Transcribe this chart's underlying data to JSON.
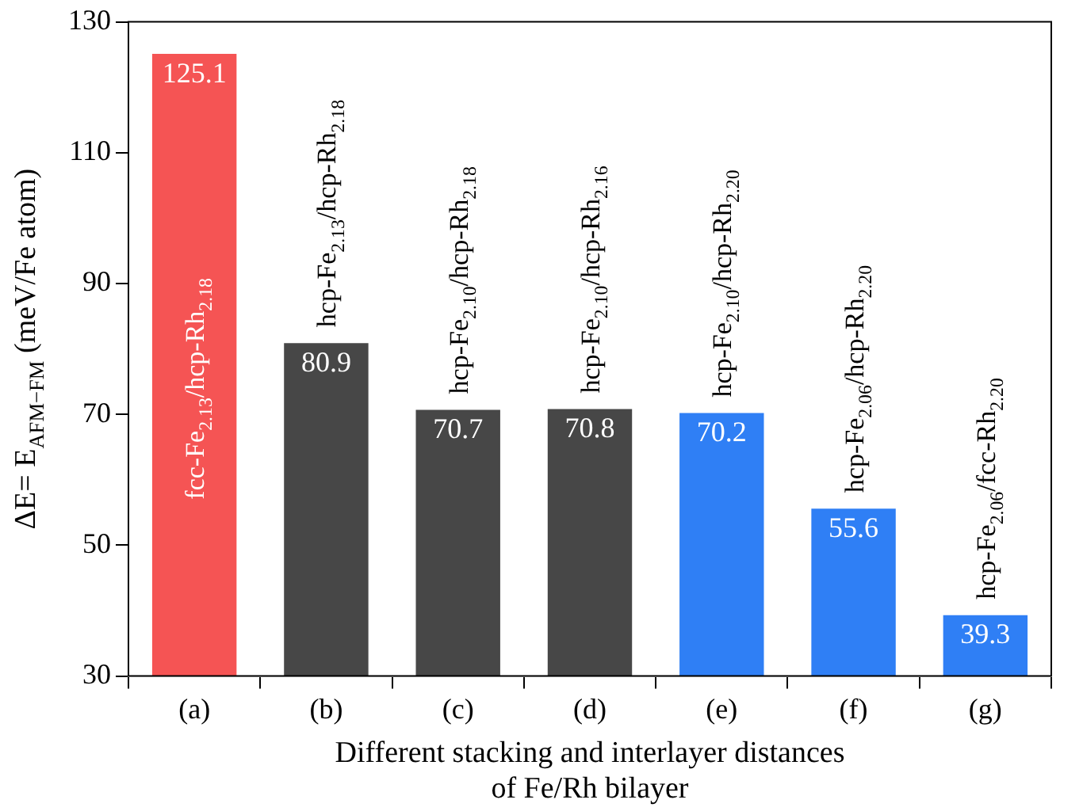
{
  "chart_data": {
    "type": "bar",
    "xlabel": "Different stacking and interlayer distances\nof Fe/Rh bilayer",
    "ylabel": "ΔE= E$_{AFM−FM}$ (meV/Fe atom)",
    "categories": [
      "(a)",
      "(b)",
      "(c)",
      "(d)",
      "(e)",
      "(f)",
      "(g)"
    ],
    "values": [
      125.1,
      80.9,
      70.7,
      70.8,
      70.2,
      55.6,
      39.3
    ],
    "colors": [
      "#f55454",
      "#474747",
      "#474747",
      "#474747",
      "#2f7ff5",
      "#2f7ff5",
      "#2f7ff5"
    ],
    "ylim": [
      30,
      130
    ],
    "yticks": [
      30,
      50,
      70,
      90,
      110,
      130
    ],
    "grid": false,
    "legend": false,
    "data_labels": true,
    "annotations": [
      "fcc-Fe$_{2.13}$/hcp-Rh$_{2.18}$",
      "hcp-Fe$_{2.13}$/hcp-Rh$_{2.18}$",
      "hcp-Fe$_{2.10}$/hcp-Rh$_{2.18}$",
      "hcp-Fe$_{2.10}$/hcp-Rh$_{2.16}$",
      "hcp-Fe$_{2.10}$/hcp-Rh$_{2.20}$",
      "hcp-Fe$_{2.06}$/hcp-Rh$_{2.20}$",
      "hcp-Fe$_{2.06}$/fcc-Rh$_{2.20}$"
    ]
  }
}
